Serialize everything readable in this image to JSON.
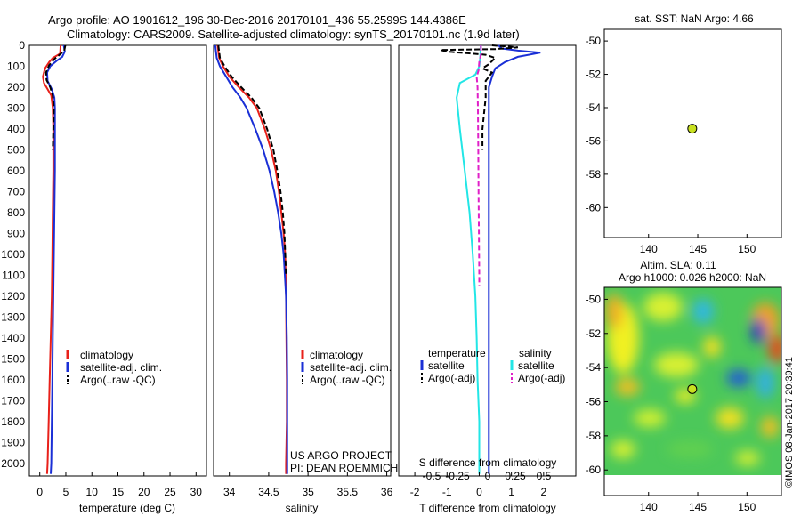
{
  "header": {
    "line1": "Argo profile: AO 1901612_196 30-Dec-2016 20170101_436 55.2599S 144.4386E",
    "line2": "Climatology: CARS2009. Satellite-adjusted climatology: synTS_20170101.nc (1.9d later)"
  },
  "colors": {
    "climatology": "#e8201a",
    "satellite": "#1a2fd6",
    "argo": "#000000",
    "satellite_s": "#22e6e6",
    "argo_s": "#e020c8",
    "marker": "#c8e020"
  },
  "depth_axis": {
    "ticks": [
      "0",
      "100",
      "200",
      "300",
      "400",
      "500",
      "600",
      "700",
      "800",
      "900",
      "1000",
      "1100",
      "1200",
      "1300",
      "1400",
      "1500",
      "1600",
      "1700",
      "1800",
      "1900",
      "2000"
    ]
  },
  "chart_data": [
    {
      "type": "line",
      "id": "temperature",
      "xlabel": "temperature (deg C)",
      "xlim": [
        -2,
        32
      ],
      "ylim": [
        2060,
        0
      ],
      "xticks": [
        "0",
        "5",
        "10",
        "15",
        "20",
        "25",
        "30"
      ],
      "legend": {
        "placement": "center",
        "entries": [
          "climatology",
          "satellite-adj. clim.",
          "Argo(..raw -QC)"
        ]
      },
      "series": [
        {
          "name": "climatology",
          "color": "#e8201a",
          "points": [
            [
              4.0,
              0
            ],
            [
              3.9,
              40
            ],
            [
              2.5,
              60
            ],
            [
              1.8,
              80
            ],
            [
              1.0,
              110
            ],
            [
              0.6,
              150
            ],
            [
              0.8,
              180
            ],
            [
              1.5,
              210
            ],
            [
              2.2,
              240
            ],
            [
              2.5,
              300
            ],
            [
              2.6,
              400
            ],
            [
              2.6,
              600
            ],
            [
              2.5,
              800
            ],
            [
              2.4,
              1000
            ],
            [
              2.3,
              1200
            ],
            [
              2.1,
              1400
            ],
            [
              1.9,
              1600
            ],
            [
              1.7,
              1800
            ],
            [
              1.5,
              2000
            ],
            [
              1.4,
              2050
            ]
          ]
        },
        {
          "name": "satellite-adj. clim.",
          "color": "#1a2fd6",
          "points": [
            [
              4.6,
              0
            ],
            [
              4.8,
              30
            ],
            [
              4.3,
              55
            ],
            [
              3.2,
              75
            ],
            [
              2.0,
              100
            ],
            [
              1.4,
              130
            ],
            [
              1.5,
              170
            ],
            [
              2.3,
              210
            ],
            [
              2.8,
              250
            ],
            [
              2.9,
              300
            ],
            [
              2.9,
              400
            ],
            [
              2.9,
              600
            ],
            [
              2.8,
              800
            ],
            [
              2.7,
              1000
            ],
            [
              2.6,
              1200
            ],
            [
              2.5,
              1400
            ],
            [
              2.4,
              1600
            ],
            [
              2.3,
              1800
            ],
            [
              2.2,
              2000
            ],
            [
              2.1,
              2050
            ]
          ]
        },
        {
          "name": "Argo(..raw -QC)",
          "color": "#000000",
          "dashed": true,
          "points": [
            [
              4.9,
              0
            ],
            [
              4.7,
              25
            ],
            [
              3.8,
              45
            ],
            [
              2.8,
              65
            ],
            [
              1.8,
              95
            ],
            [
              1.2,
              130
            ],
            [
              1.3,
              165
            ],
            [
              2.0,
              200
            ],
            [
              2.5,
              240
            ],
            [
              2.7,
              300
            ],
            [
              2.6,
              400
            ],
            [
              2.5,
              500
            ]
          ]
        }
      ]
    },
    {
      "type": "line",
      "id": "salinity",
      "xlabel": "salinity",
      "xlim": [
        33.8,
        36.05
      ],
      "ylim": [
        2060,
        0
      ],
      "xticks": [
        "34",
        "34.5",
        "35",
        "35.5",
        "36"
      ],
      "legend": {
        "placement": "center",
        "entries": [
          "climatology",
          "satellite-adj. clim.",
          "Argo(..raw -QC)"
        ]
      },
      "annotation": [
        "US ARGO PROJECT",
        "PI: DEAN ROEMMICH"
      ],
      "series": [
        {
          "name": "climatology",
          "color": "#e8201a",
          "points": [
            [
              33.85,
              0
            ],
            [
              33.87,
              60
            ],
            [
              33.92,
              100
            ],
            [
              34.0,
              150
            ],
            [
              34.12,
              200
            ],
            [
              34.25,
              250
            ],
            [
              34.35,
              300
            ],
            [
              34.45,
              400
            ],
            [
              34.53,
              500
            ],
            [
              34.59,
              600
            ],
            [
              34.63,
              700
            ],
            [
              34.66,
              800
            ],
            [
              34.69,
              900
            ],
            [
              34.71,
              1000
            ],
            [
              34.72,
              1200
            ],
            [
              34.725,
              1400
            ],
            [
              34.73,
              1600
            ],
            [
              34.73,
              1800
            ],
            [
              34.72,
              2000
            ],
            [
              34.72,
              2050
            ]
          ]
        },
        {
          "name": "satellite-adj. clim.",
          "color": "#1a2fd6",
          "points": [
            [
              33.82,
              0
            ],
            [
              33.84,
              60
            ],
            [
              33.88,
              100
            ],
            [
              33.96,
              150
            ],
            [
              34.04,
              200
            ],
            [
              34.14,
              250
            ],
            [
              34.22,
              300
            ],
            [
              34.33,
              400
            ],
            [
              34.43,
              500
            ],
            [
              34.51,
              600
            ],
            [
              34.57,
              700
            ],
            [
              34.62,
              800
            ],
            [
              34.66,
              900
            ],
            [
              34.69,
              1000
            ],
            [
              34.72,
              1200
            ],
            [
              34.73,
              1400
            ],
            [
              34.735,
              1600
            ],
            [
              34.735,
              1800
            ],
            [
              34.735,
              2000
            ],
            [
              34.735,
              2050
            ]
          ]
        },
        {
          "name": "Argo(..raw -QC)",
          "color": "#000000",
          "dashed": true,
          "points": [
            [
              33.86,
              0
            ],
            [
              33.88,
              60
            ],
            [
              33.94,
              100
            ],
            [
              34.03,
              150
            ],
            [
              34.15,
              200
            ],
            [
              34.28,
              250
            ],
            [
              34.38,
              300
            ],
            [
              34.48,
              400
            ],
            [
              34.56,
              500
            ],
            [
              34.61,
              600
            ],
            [
              34.65,
              700
            ],
            [
              34.68,
              800
            ],
            [
              34.7,
              900
            ],
            [
              34.71,
              1000
            ],
            [
              34.72,
              1100
            ]
          ]
        }
      ]
    },
    {
      "type": "line",
      "id": "differences",
      "xlabel": "T difference from climatology",
      "xlabel2": "S difference from climatology",
      "xlim": [
        -2.5,
        3.0
      ],
      "ylim": [
        2060,
        0
      ],
      "xticks": [
        "-2",
        "-1",
        "0",
        "1",
        "2"
      ],
      "xticks_s": [
        "-0.5",
        "-0.25",
        "0",
        "0.25",
        "0.5"
      ],
      "legend": {
        "placement": "center",
        "temperature_heading": "temperature",
        "salinity_heading": "salinity",
        "entries_t": [
          "satellite",
          "Argo(-adj)"
        ],
        "entries_s": [
          "satellite",
          "Argo(-adj)"
        ]
      },
      "series": [
        {
          "name": "satellite",
          "group": "temperature",
          "color": "#1a2fd6",
          "points": [
            [
              0.6,
              0
            ],
            [
              0.7,
              15
            ],
            [
              1.2,
              25
            ],
            [
              1.9,
              35
            ],
            [
              1.2,
              55
            ],
            [
              0.8,
              80
            ],
            [
              0.5,
              110
            ],
            [
              0.4,
              150
            ],
            [
              0.3,
              200
            ],
            [
              0.3,
              300
            ],
            [
              0.3,
              500
            ],
            [
              0.3,
              800
            ],
            [
              0.3,
              1200
            ],
            [
              0.3,
              1600
            ],
            [
              0.3,
              2000
            ],
            [
              0.3,
              2050
            ]
          ]
        },
        {
          "name": "Argo(-adj)",
          "group": "temperature",
          "color": "#000000",
          "dashed": true,
          "points": [
            [
              0.4,
              0
            ],
            [
              1.2,
              10
            ],
            [
              0.5,
              18
            ],
            [
              -1.2,
              22
            ],
            [
              -1.0,
              30
            ],
            [
              0.2,
              45
            ],
            [
              0.5,
              60
            ],
            [
              0.3,
              90
            ],
            [
              0.1,
              110
            ],
            [
              0.4,
              130
            ],
            [
              0.2,
              170
            ],
            [
              0.2,
              250
            ],
            [
              0.1,
              400
            ],
            [
              0.1,
              500
            ]
          ]
        },
        {
          "name": "satellite",
          "group": "salinity",
          "color": "#22e6e6",
          "points": [
            [
              0.05,
              0
            ],
            [
              0.03,
              60
            ],
            [
              0.0,
              100
            ],
            [
              -0.12,
              140
            ],
            [
              -0.6,
              180
            ],
            [
              -0.7,
              250
            ],
            [
              -0.6,
              400
            ],
            [
              -0.45,
              600
            ],
            [
              -0.3,
              800
            ],
            [
              -0.2,
              1000
            ],
            [
              -0.12,
              1200
            ],
            [
              -0.08,
              1400
            ],
            [
              -0.05,
              1600
            ],
            [
              0.0,
              1800
            ],
            [
              0.0,
              2000
            ],
            [
              0.0,
              2050
            ]
          ]
        },
        {
          "name": "Argo(-adj)",
          "group": "salinity",
          "color": "#e020c8",
          "dashed": true,
          "points": [
            [
              0.05,
              0
            ],
            [
              0.06,
              40
            ],
            [
              0.0,
              80
            ],
            [
              -0.02,
              120
            ],
            [
              -0.08,
              150
            ],
            [
              -0.05,
              200
            ],
            [
              -0.04,
              300
            ],
            [
              -0.03,
              500
            ],
            [
              -0.02,
              700
            ],
            [
              -0.01,
              900
            ],
            [
              0.0,
              1100
            ],
            [
              0.0,
              1150
            ]
          ]
        }
      ]
    },
    {
      "type": "scatter",
      "id": "sst-map",
      "title": "sat. SST: NaN Argo: 4.66",
      "xlim": [
        135.5,
        153.5
      ],
      "ylim": [
        -61.8,
        -49.3
      ],
      "xticks": [
        "140",
        "145",
        "150"
      ],
      "yticks": [
        "-50",
        "-52",
        "-54",
        "-56",
        "-58",
        "-60"
      ],
      "points": [
        {
          "lon": 144.44,
          "lat": -55.26
        }
      ]
    },
    {
      "type": "heatmap",
      "id": "sla-map",
      "title": "Altim. SLA: 0.11",
      "subtitle": "Argo h1000: 0.026 h2000: NaN",
      "xlim": [
        135.5,
        153.5
      ],
      "ylim": [
        -61.5,
        -49.3
      ],
      "data_ylim": [
        -60.0,
        -49.3
      ],
      "xticks": [
        "140",
        "145",
        "150"
      ],
      "yticks": [
        "-50",
        "-52",
        "-54",
        "-56",
        "-58",
        "-60"
      ],
      "points": [
        {
          "lon": 144.44,
          "lat": -55.26
        }
      ],
      "stamp": "©IMOS 08-Jan-2017 20:39:41"
    }
  ]
}
